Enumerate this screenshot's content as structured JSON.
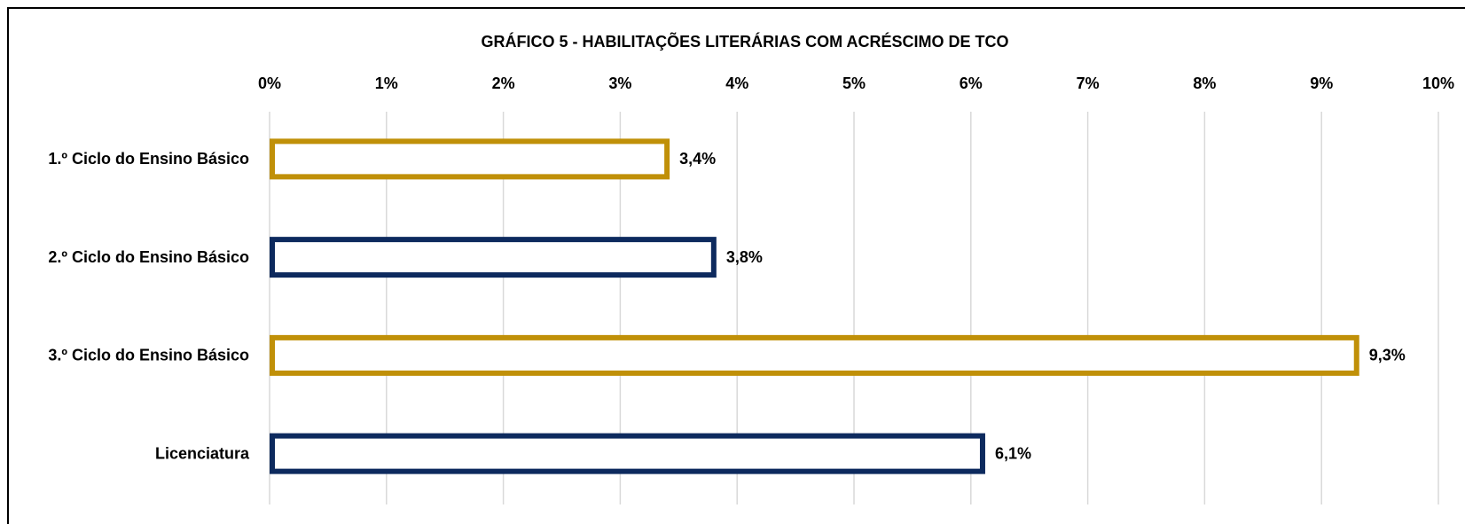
{
  "chart_data": {
    "type": "hbar",
    "title": "GRÁFICO 5 - HABILITAÇÕES LITERÁRIAS COM ACRÉSCIMO DE TCO",
    "categories": [
      "1.º Ciclo do Ensino Básico",
      "2.º Ciclo do Ensino Básico",
      "3.º Ciclo do Ensino Básico",
      "Licenciatura"
    ],
    "values": [
      3.4,
      3.8,
      9.3,
      6.1
    ],
    "value_labels": [
      "3,4%",
      "3,8%",
      "9,3%",
      "6,1%"
    ],
    "colors": [
      "#c09008",
      "#0d2a5e",
      "#c09008",
      "#0d2a5e"
    ],
    "xlim": [
      0,
      10
    ],
    "xticks": [
      {
        "value": 0,
        "label": "0%"
      },
      {
        "value": 1,
        "label": "1%"
      },
      {
        "value": 2,
        "label": "2%"
      },
      {
        "value": 3,
        "label": "3%"
      },
      {
        "value": 4,
        "label": "4%"
      },
      {
        "value": 5,
        "label": "5%"
      },
      {
        "value": 6,
        "label": "6%"
      },
      {
        "value": 7,
        "label": "7%"
      },
      {
        "value": 8,
        "label": "8%"
      },
      {
        "value": 9,
        "label": "9%"
      },
      {
        "value": 10,
        "label": "10%"
      }
    ],
    "grid": true
  }
}
